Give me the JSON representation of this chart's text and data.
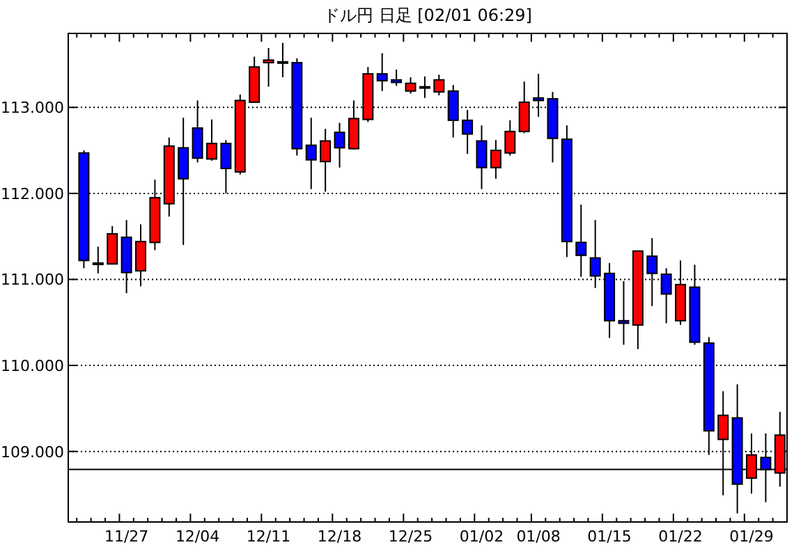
{
  "chart_data": {
    "type": "candlestick",
    "title": "ドル円 日足 [02/01 06:29]",
    "categories": [
      null,
      null,
      null,
      "11/27",
      null,
      null,
      null,
      null,
      "12/04",
      null,
      null,
      null,
      null,
      "12/11",
      null,
      null,
      null,
      null,
      "12/18",
      null,
      null,
      null,
      null,
      "12/25",
      null,
      null,
      null,
      null,
      "01/02",
      null,
      null,
      null,
      "01/08",
      null,
      null,
      null,
      null,
      "01/15",
      null,
      null,
      null,
      null,
      "01/22",
      null,
      null,
      null,
      null,
      "01/29",
      null,
      null
    ],
    "ohlc": [
      [
        112.47,
        112.5,
        111.13,
        111.22
      ],
      [
        111.19,
        111.38,
        111.07,
        111.19
      ],
      [
        111.18,
        111.62,
        111.18,
        111.53
      ],
      [
        111.49,
        111.69,
        110.84,
        111.08
      ],
      [
        111.1,
        111.64,
        110.92,
        111.44
      ],
      [
        111.43,
        112.16,
        111.34,
        111.95
      ],
      [
        111.88,
        112.65,
        111.73,
        112.55
      ],
      [
        112.53,
        112.88,
        111.4,
        112.17
      ],
      [
        112.76,
        113.08,
        112.36,
        112.41
      ],
      [
        112.4,
        112.86,
        112.38,
        112.58
      ],
      [
        112.58,
        112.62,
        112.0,
        112.29
      ],
      [
        112.25,
        113.15,
        112.22,
        113.08
      ],
      [
        113.06,
        113.59,
        113.06,
        113.47
      ],
      [
        113.52,
        113.69,
        113.24,
        113.55
      ],
      [
        113.53,
        113.75,
        113.35,
        113.53
      ],
      [
        113.52,
        113.57,
        112.44,
        112.52
      ],
      [
        112.56,
        112.88,
        112.05,
        112.39
      ],
      [
        112.37,
        112.75,
        112.02,
        112.61
      ],
      [
        112.71,
        112.82,
        112.3,
        112.53
      ],
      [
        112.52,
        113.08,
        112.51,
        112.87
      ],
      [
        112.86,
        113.47,
        112.83,
        113.39
      ],
      [
        113.39,
        113.63,
        113.19,
        113.31
      ],
      [
        113.32,
        113.44,
        113.25,
        113.29
      ],
      [
        113.19,
        113.35,
        113.16,
        113.28
      ],
      [
        113.24,
        113.36,
        113.11,
        113.24
      ],
      [
        113.18,
        113.38,
        113.14,
        113.32
      ],
      [
        113.19,
        113.26,
        112.65,
        112.85
      ],
      [
        112.85,
        112.97,
        112.46,
        112.69
      ],
      [
        112.61,
        112.79,
        112.05,
        112.3
      ],
      [
        112.3,
        112.62,
        112.17,
        112.5
      ],
      [
        112.47,
        112.85,
        112.44,
        112.72
      ],
      [
        112.72,
        113.3,
        112.7,
        113.06
      ],
      [
        113.11,
        113.39,
        112.89,
        113.08
      ],
      [
        113.1,
        113.18,
        112.36,
        112.64
      ],
      [
        112.63,
        112.79,
        111.26,
        111.44
      ],
      [
        111.43,
        111.87,
        111.03,
        111.28
      ],
      [
        111.25,
        111.69,
        110.9,
        111.04
      ],
      [
        111.07,
        111.19,
        110.32,
        110.52
      ],
      [
        110.52,
        110.98,
        110.24,
        110.49
      ],
      [
        110.47,
        111.33,
        110.19,
        111.33
      ],
      [
        111.27,
        111.48,
        110.69,
        111.07
      ],
      [
        111.06,
        111.13,
        110.49,
        110.83
      ],
      [
        110.52,
        111.22,
        110.47,
        110.94
      ],
      [
        110.91,
        111.17,
        110.24,
        110.27
      ],
      [
        110.26,
        110.33,
        108.96,
        109.24
      ],
      [
        109.14,
        109.7,
        108.49,
        109.42
      ],
      [
        109.39,
        109.78,
        108.28,
        108.62
      ],
      [
        108.69,
        109.21,
        108.51,
        108.96
      ],
      [
        108.93,
        109.21,
        108.41,
        108.79
      ],
      [
        108.75,
        109.46,
        108.59,
        109.19
      ]
    ],
    "colors": [
      "#0000ff",
      "#000000",
      "#ff0000",
      "#0000ff",
      "#ff0000",
      "#ff0000",
      "#ff0000",
      "#0000ff",
      "#0000ff",
      "#ff0000",
      "#0000ff",
      "#ff0000",
      "#ff0000",
      "#ff0000",
      "#000000",
      "#0000ff",
      "#0000ff",
      "#ff0000",
      "#0000ff",
      "#ff0000",
      "#ff0000",
      "#0000ff",
      "#0000ff",
      "#ff0000",
      "#000000",
      "#ff0000",
      "#0000ff",
      "#0000ff",
      "#0000ff",
      "#ff0000",
      "#ff0000",
      "#ff0000",
      "#0000ff",
      "#0000ff",
      "#0000ff",
      "#0000ff",
      "#0000ff",
      "#0000ff",
      "#0000ff",
      "#ff0000",
      "#0000ff",
      "#0000ff",
      "#ff0000",
      "#0000ff",
      "#0000ff",
      "#ff0000",
      "#0000ff",
      "#ff0000",
      "#0000ff",
      "#ff0000"
    ],
    "ylim": [
      108.18,
      113.86
    ],
    "yticks": [
      {
        "value": 109,
        "label": "109.000"
      },
      {
        "value": 110,
        "label": "110.000"
      },
      {
        "value": 111,
        "label": "111.000"
      },
      {
        "value": 112,
        "label": "112.000"
      },
      {
        "value": 113,
        "label": "113.000"
      }
    ],
    "grid": "y",
    "ref_lines": [
      {
        "axis": "y",
        "value": 108.79,
        "color": "#000000"
      }
    ]
  }
}
